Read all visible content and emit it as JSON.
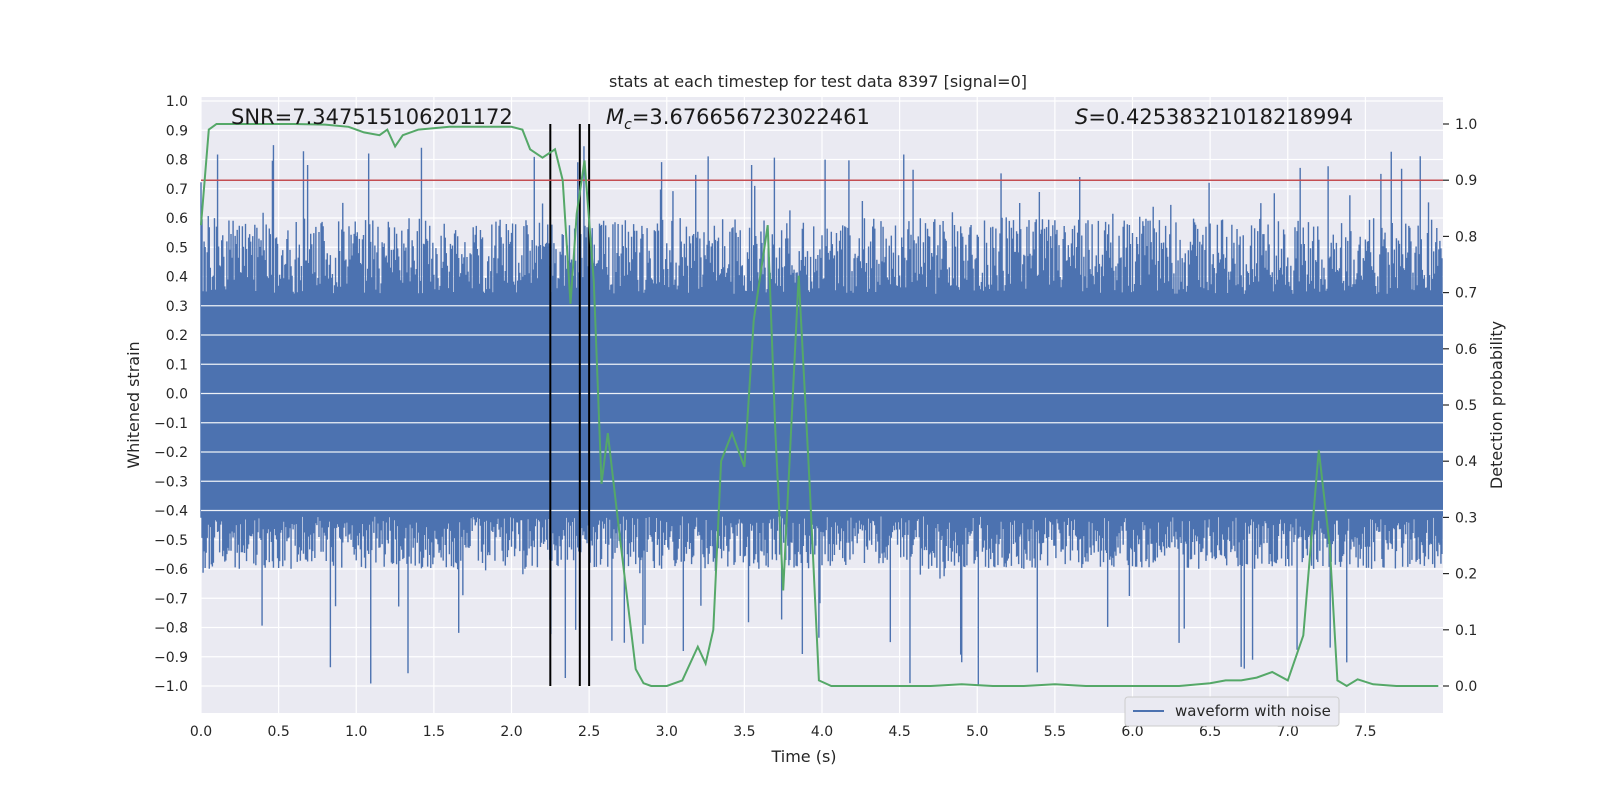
{
  "chart_data": {
    "type": "line",
    "title": "stats at each timestep for test data 8397 [signal=0]",
    "xlabel": "Time (s)",
    "ylabel": "Whitened strain",
    "y2label": "Detection probability",
    "xlim": [
      0,
      8
    ],
    "ylim": [
      -1.09,
      1.0
    ],
    "y2lim": [
      -0.045,
      1.04
    ],
    "x_ticks": [
      "0.0",
      "0.5",
      "1.0",
      "1.5",
      "2.0",
      "2.5",
      "3.0",
      "3.5",
      "4.0",
      "4.5",
      "5.0",
      "5.5",
      "6.0",
      "6.5",
      "7.0",
      "7.5"
    ],
    "y_ticks": [
      "1.0",
      "0.9",
      "0.8",
      "0.7",
      "0.6",
      "0.5",
      "0.4",
      "0.3",
      "0.2",
      "0.1",
      "0.0",
      "−0.1",
      "−0.2",
      "−0.3",
      "−0.4",
      "−0.5",
      "−0.6",
      "−0.7",
      "−0.8",
      "−0.9",
      "−1.0"
    ],
    "y2_ticks": [
      "1.0",
      "0.9",
      "0.8",
      "0.7",
      "0.6",
      "0.5",
      "0.4",
      "0.3",
      "0.2",
      "0.1",
      "0.0"
    ],
    "annotations": {
      "snr_text": "SNR=7.347515106201172",
      "mc_symbol": "M",
      "mc_sub": "c",
      "mc_value": "=3.676656723022461",
      "s_symbol": "S",
      "s_value": "=0.42538321018218994"
    },
    "legend": {
      "label": "waveform with noise",
      "location": "lower-right"
    },
    "threshold_line": {
      "axis": "y2",
      "value": 0.9,
      "color": "#c44e52"
    },
    "vertical_lines": [
      2.25,
      2.44,
      2.5
    ],
    "waveform": {
      "name": "waveform with noise",
      "color": "#4c72b0",
      "duration": 8,
      "samples": 1200,
      "core_band": [
        -0.42,
        0.34
      ],
      "typical_peak_range": [
        0.45,
        0.6
      ],
      "typical_trough_range": [
        -0.45,
        -0.6
      ],
      "peak_max": 0.86,
      "trough_min": -1.0
    },
    "detection_probability": {
      "name": "detection probability",
      "color": "#55a868",
      "x": [
        0.0,
        0.05,
        0.1,
        0.2,
        0.4,
        0.6,
        0.8,
        0.95,
        1.05,
        1.15,
        1.2,
        1.25,
        1.3,
        1.4,
        1.6,
        1.8,
        2.0,
        2.07,
        2.12,
        2.2,
        2.28,
        2.33,
        2.38,
        2.42,
        2.47,
        2.53,
        2.58,
        2.62,
        2.7,
        2.8,
        2.85,
        2.9,
        2.95,
        3.0,
        3.1,
        3.2,
        3.25,
        3.3,
        3.35,
        3.42,
        3.5,
        3.56,
        3.65,
        3.7,
        3.75,
        3.85,
        3.92,
        3.98,
        4.06,
        4.15,
        4.3,
        4.5,
        4.7,
        4.9,
        5.1,
        5.3,
        5.5,
        5.7,
        5.9,
        6.1,
        6.3,
        6.5,
        6.6,
        6.7,
        6.8,
        6.9,
        7.0,
        7.1,
        7.2,
        7.27,
        7.32,
        7.38,
        7.45,
        7.55,
        7.7,
        7.97
      ],
      "y": [
        0.82,
        0.99,
        1.0,
        1.0,
        1.0,
        1.0,
        0.999,
        0.995,
        0.985,
        0.98,
        0.99,
        0.96,
        0.98,
        0.99,
        0.995,
        0.995,
        0.995,
        0.99,
        0.955,
        0.94,
        0.955,
        0.9,
        0.68,
        0.84,
        0.935,
        0.72,
        0.36,
        0.45,
        0.26,
        0.03,
        0.005,
        0.0,
        0.0,
        0.0,
        0.01,
        0.07,
        0.04,
        0.1,
        0.4,
        0.45,
        0.39,
        0.65,
        0.82,
        0.45,
        0.17,
        0.73,
        0.36,
        0.01,
        0.0,
        0.0,
        0.0,
        0.0,
        0.0,
        0.003,
        0.0,
        0.0,
        0.003,
        0.0,
        0.0,
        0.0,
        0.0,
        0.005,
        0.01,
        0.01,
        0.015,
        0.025,
        0.01,
        0.09,
        0.42,
        0.25,
        0.01,
        0.0,
        0.012,
        0.003,
        0.0,
        0.0
      ]
    }
  }
}
